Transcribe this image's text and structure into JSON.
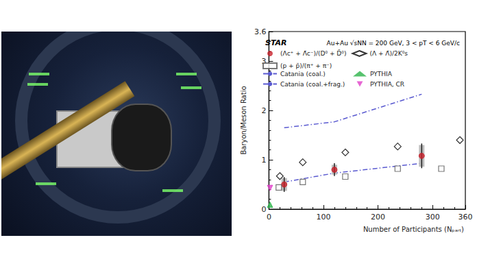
{
  "chart_data": {
    "type": "scatter",
    "title": "STAR",
    "subtitle": "Au+Au √sNN = 200 GeV, 3 < pT < 6 GeV/c",
    "x_label": "Number of Participants (Nₚₐᵣₜ)",
    "y_label": "Baryon/Meson Ratio",
    "xlim": [
      0,
      360
    ],
    "xticks": [
      0,
      100,
      200,
      300
    ],
    "ylim": [
      0,
      3.6
    ],
    "yticks": [
      0,
      1,
      2,
      3
    ],
    "grid": false,
    "legend": "top",
    "series": [
      {
        "name": "(Λc⁺ + Λ̄c⁻)/(D⁰ + D̄⁰)",
        "type": "scatter",
        "marker": "circle",
        "color": "#c8202a",
        "x": [
          28,
          120,
          280
        ],
        "values": [
          0.5,
          0.8,
          1.08
        ],
        "errors": [
          0.15,
          0.13,
          0.25
        ],
        "sys_errors": [
          0.13,
          0.1,
          0.22
        ]
      },
      {
        "name": "(Λ + Λ̄)/2K⁰s",
        "type": "scatter",
        "marker": "diamond-open",
        "color": "#000000",
        "x": [
          20,
          62,
          140,
          236,
          350
        ],
        "values": [
          0.67,
          0.95,
          1.15,
          1.27,
          1.4
        ]
      },
      {
        "name": "(p + p̄)/(π⁺ + π⁻)",
        "type": "scatter",
        "marker": "square-open",
        "color": "#555555",
        "x": [
          18,
          62,
          140,
          236,
          316
        ],
        "values": [
          0.44,
          0.55,
          0.66,
          0.82,
          0.82
        ]
      },
      {
        "name": "Catania (coal.)",
        "type": "line",
        "line_style": "dashdot",
        "color": "#5a5ad0",
        "x": [
          28,
          120,
          280
        ],
        "values": [
          1.65,
          1.77,
          2.33
        ]
      },
      {
        "name": "Catania (coal.+frag.)",
        "type": "line",
        "line_style": "dashdot",
        "color": "#5a5ad0",
        "x": [
          28,
          120,
          280
        ],
        "values": [
          0.55,
          0.73,
          0.93
        ]
      },
      {
        "name": "PYTHIA",
        "type": "scatter",
        "marker": "triangle",
        "color": "#2db34a",
        "x": [
          2
        ],
        "values": [
          0.09
        ]
      },
      {
        "name": "PYTHIA, CR",
        "type": "scatter",
        "marker": "triangle-down",
        "color": "#e040c8",
        "x": [
          2
        ],
        "values": [
          0.43
        ]
      }
    ]
  }
}
